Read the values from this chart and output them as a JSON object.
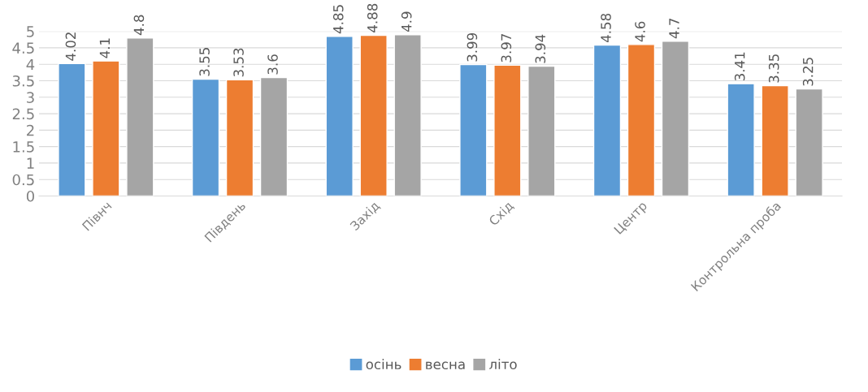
{
  "chart_data": {
    "type": "bar",
    "categories": [
      "Півнч",
      "Південь",
      "Захід",
      "Схід",
      "Центр",
      "Контрольна проба"
    ],
    "series": [
      {
        "name": "осінь",
        "color": "#5b9bd5",
        "values": [
          4.02,
          3.55,
          4.85,
          3.99,
          4.58,
          3.41
        ]
      },
      {
        "name": "весна",
        "color": "#ed7d31",
        "values": [
          4.1,
          3.53,
          4.88,
          3.97,
          4.6,
          3.35
        ]
      },
      {
        "name": "літо",
        "color": "#a5a5a5",
        "values": [
          4.8,
          3.6,
          4.9,
          3.94,
          4.7,
          3.25
        ]
      }
    ],
    "ylim": [
      0,
      5
    ],
    "yticks": [
      0,
      0.5,
      1,
      1.5,
      2,
      2.5,
      3,
      3.5,
      4,
      4.5,
      5
    ],
    "grid": "y",
    "legend": "bottom",
    "data_labels": true
  }
}
